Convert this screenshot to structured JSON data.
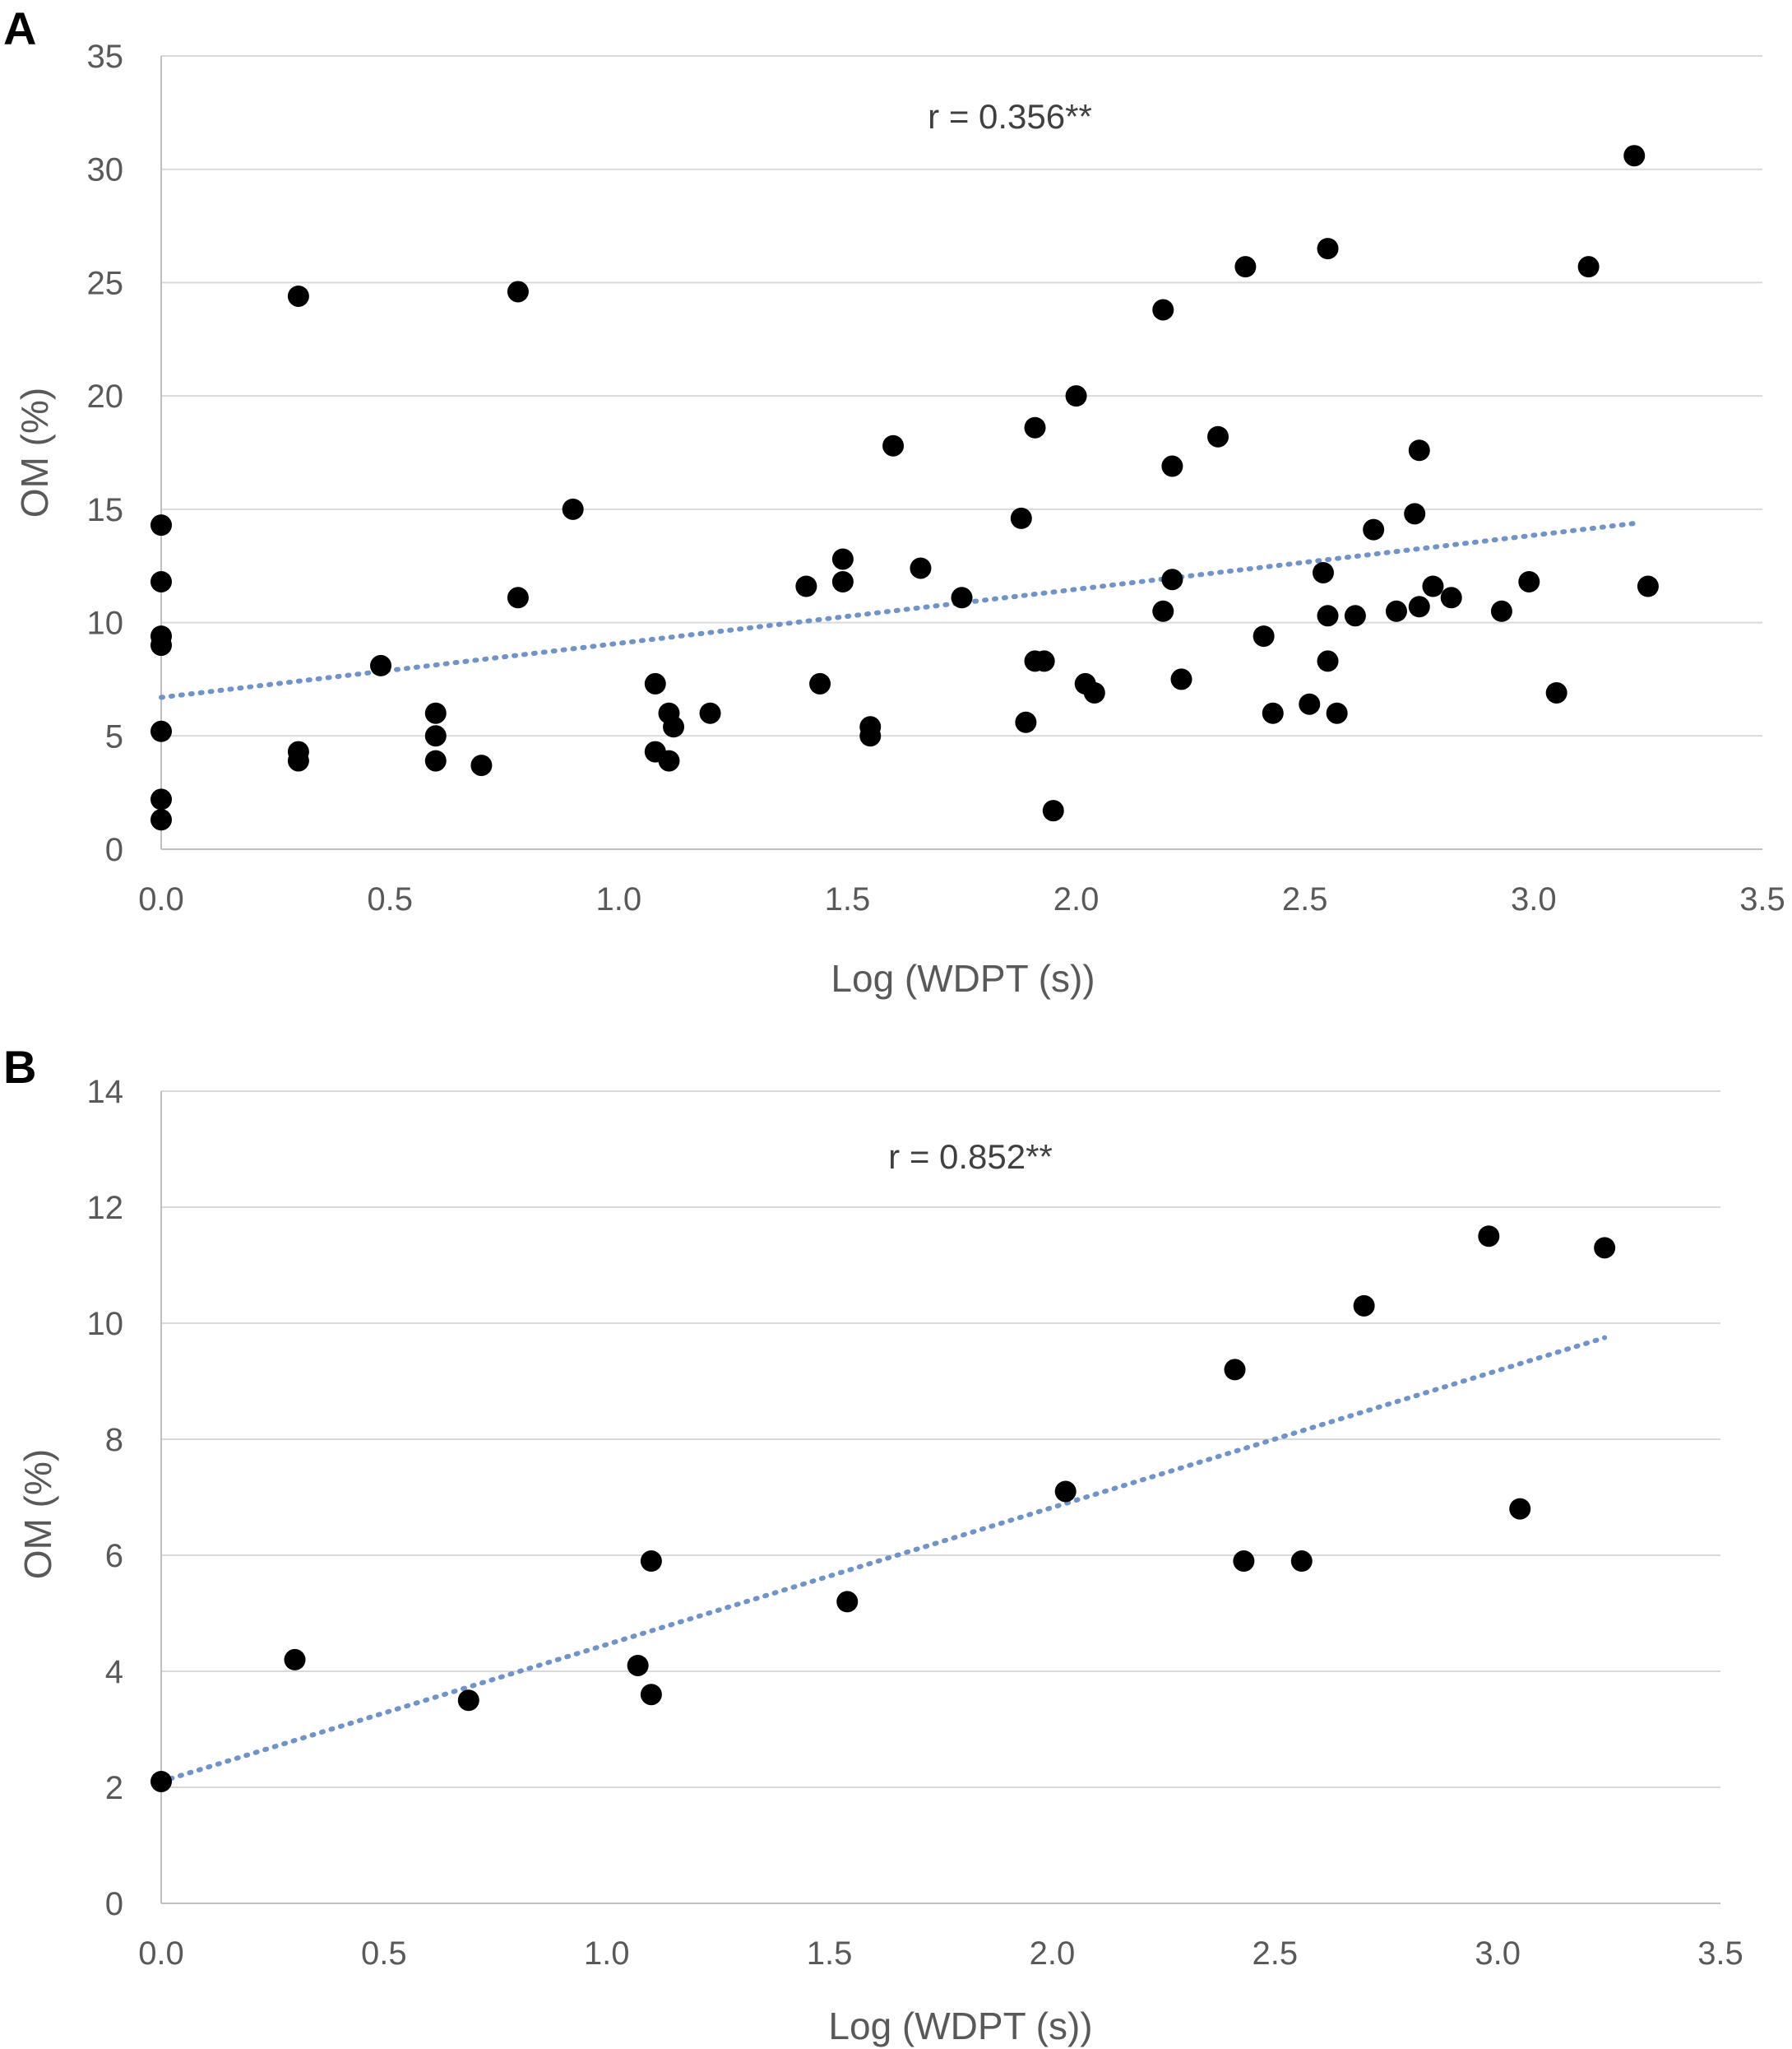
{
  "chart_data": [
    {
      "type": "scatter",
      "panel_label": "A",
      "annotation": "r = 0.356**",
      "xlabel": "Log (WDPT (s))",
      "ylabel": "OM (%)",
      "xlim": [
        0,
        3.5
      ],
      "ylim": [
        0,
        35
      ],
      "x_ticks": [
        "0.0",
        "0.5",
        "1.0",
        "1.5",
        "2.0",
        "2.5",
        "3.0",
        "3.5"
      ],
      "y_ticks": [
        "0",
        "5",
        "10",
        "15",
        "20",
        "25",
        "30",
        "35"
      ],
      "grid": true,
      "trendline": {
        "x": [
          0.0,
          3.23
        ],
        "y": [
          6.7,
          14.4
        ]
      },
      "points": [
        [
          0.0,
          14.3
        ],
        [
          0.0,
          11.8
        ],
        [
          0.0,
          9.4
        ],
        [
          0.0,
          9.0
        ],
        [
          0.0,
          5.2
        ],
        [
          0.0,
          2.2
        ],
        [
          0.0,
          1.3
        ],
        [
          0.3,
          24.4
        ],
        [
          0.3,
          4.3
        ],
        [
          0.3,
          3.9
        ],
        [
          0.48,
          8.1
        ],
        [
          0.6,
          6.0
        ],
        [
          0.6,
          5.0
        ],
        [
          0.6,
          3.9
        ],
        [
          0.7,
          3.7
        ],
        [
          0.78,
          24.6
        ],
        [
          0.78,
          11.1
        ],
        [
          0.9,
          15.0
        ],
        [
          1.08,
          7.3
        ],
        [
          1.08,
          4.3
        ],
        [
          1.11,
          6.0
        ],
        [
          1.11,
          3.9
        ],
        [
          1.12,
          5.4
        ],
        [
          1.2,
          6.0
        ],
        [
          1.41,
          11.6
        ],
        [
          1.44,
          7.3
        ],
        [
          1.49,
          12.8
        ],
        [
          1.49,
          11.8
        ],
        [
          1.55,
          5.4
        ],
        [
          1.55,
          5.0
        ],
        [
          1.6,
          17.8
        ],
        [
          1.66,
          12.4
        ],
        [
          1.75,
          11.1
        ],
        [
          1.88,
          14.6
        ],
        [
          1.89,
          5.6
        ],
        [
          1.91,
          18.6
        ],
        [
          1.91,
          8.3
        ],
        [
          1.93,
          8.3
        ],
        [
          1.95,
          1.7
        ],
        [
          2.0,
          20.0
        ],
        [
          2.02,
          7.3
        ],
        [
          2.04,
          6.9
        ],
        [
          2.19,
          23.8
        ],
        [
          2.19,
          10.5
        ],
        [
          2.21,
          16.9
        ],
        [
          2.21,
          11.9
        ],
        [
          2.23,
          7.5
        ],
        [
          2.31,
          18.2
        ],
        [
          2.37,
          25.7
        ],
        [
          2.41,
          9.4
        ],
        [
          2.43,
          6.0
        ],
        [
          2.51,
          6.4
        ],
        [
          2.54,
          12.2
        ],
        [
          2.55,
          26.5
        ],
        [
          2.55,
          10.3
        ],
        [
          2.55,
          8.3
        ],
        [
          2.57,
          6.0
        ],
        [
          2.61,
          10.3
        ],
        [
          2.65,
          14.1
        ],
        [
          2.7,
          10.5
        ],
        [
          2.74,
          14.8
        ],
        [
          2.75,
          17.6
        ],
        [
          2.75,
          10.7
        ],
        [
          2.78,
          11.6
        ],
        [
          2.82,
          11.1
        ],
        [
          2.93,
          10.5
        ],
        [
          2.99,
          11.8
        ],
        [
          3.05,
          6.9
        ],
        [
          3.12,
          25.7
        ],
        [
          3.22,
          30.6
        ],
        [
          3.25,
          11.6
        ]
      ]
    },
    {
      "type": "scatter",
      "panel_label": "B",
      "annotation": "r = 0.852**",
      "xlabel": "Log (WDPT (s))",
      "ylabel": "OM (%)",
      "xlim": [
        0,
        3.5
      ],
      "ylim": [
        0,
        14
      ],
      "x_ticks": [
        "0.0",
        "0.5",
        "1.0",
        "1.5",
        "2.0",
        "2.5",
        "3.0",
        "3.5"
      ],
      "y_ticks": [
        "0",
        "2",
        "4",
        "6",
        "8",
        "10",
        "12",
        "14"
      ],
      "grid": true,
      "trendline": {
        "x": [
          0.0,
          3.24
        ],
        "y": [
          2.1,
          9.75
        ]
      },
      "points": [
        [
          0.0,
          2.1
        ],
        [
          0.3,
          4.2
        ],
        [
          0.69,
          3.5
        ],
        [
          1.07,
          4.1
        ],
        [
          1.1,
          5.9
        ],
        [
          1.1,
          3.6
        ],
        [
          1.54,
          5.2
        ],
        [
          2.03,
          7.1
        ],
        [
          2.41,
          9.2
        ],
        [
          2.43,
          5.9
        ],
        [
          2.56,
          5.9
        ],
        [
          2.7,
          10.3
        ],
        [
          2.98,
          11.5
        ],
        [
          3.05,
          6.8
        ],
        [
          3.24,
          11.3
        ]
      ]
    }
  ]
}
